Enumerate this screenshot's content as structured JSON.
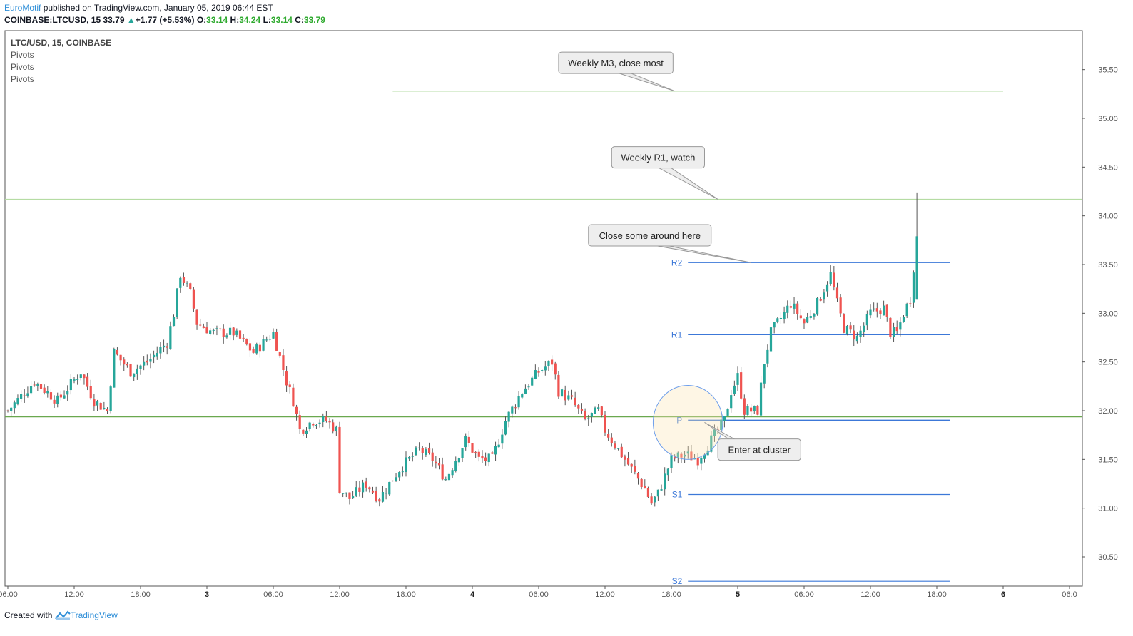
{
  "header": {
    "brand": "EuroMotif",
    "published": " published on TradingView.com, January 05, 2019 06:44 EST",
    "symbol": "COINBASE:LTCUSD, 15",
    "last": "33.79",
    "change": "+1.77 (+5.53%)",
    "o_label": "O:",
    "o": "33.14",
    "h_label": "H:",
    "h": "34.24",
    "l_label": "L:",
    "l": "33.14",
    "c_label": "C:",
    "c": "33.79"
  },
  "legend": {
    "symbol_line": "LTC/USD, 15, COINBASE",
    "indicators": [
      "Pivots",
      "Pivots",
      "Pivots"
    ]
  },
  "footer": {
    "created": "Created with ",
    "brand": "TradingView"
  },
  "colors": {
    "up": "#26a69a",
    "down": "#ef5350",
    "pivot": "#3c78d8",
    "weekly": "#6aa84f",
    "accent": "#2f8fd8"
  },
  "chart_data": {
    "type": "candlestick",
    "ylim": [
      30.2,
      35.9
    ],
    "y_ticks": [
      "30.50",
      "31.00",
      "31.50",
      "32.00",
      "32.50",
      "33.00",
      "33.50",
      "34.00",
      "34.50",
      "35.00",
      "35.50"
    ],
    "x_ticks": [
      {
        "label": "06:00",
        "bold": false
      },
      {
        "label": "12:00",
        "bold": false
      },
      {
        "label": "18:00",
        "bold": false
      },
      {
        "label": "3",
        "bold": true
      },
      {
        "label": "06:00",
        "bold": false
      },
      {
        "label": "12:00",
        "bold": false
      },
      {
        "label": "18:00",
        "bold": false
      },
      {
        "label": "4",
        "bold": true
      },
      {
        "label": "06:00",
        "bold": false
      },
      {
        "label": "12:00",
        "bold": false
      },
      {
        "label": "18:00",
        "bold": false
      },
      {
        "label": "5",
        "bold": true
      },
      {
        "label": "06:00",
        "bold": false
      },
      {
        "label": "12:00",
        "bold": false
      },
      {
        "label": "18:00",
        "bold": false
      },
      {
        "label": "6",
        "bold": true
      },
      {
        "label": "06:0",
        "bold": false
      }
    ],
    "close_path": [
      [
        0,
        32.0
      ],
      [
        8,
        32.3
      ],
      [
        15,
        32.1
      ],
      [
        22,
        32.4
      ],
      [
        26,
        32.1
      ],
      [
        30,
        32.0
      ],
      [
        32,
        32.6
      ],
      [
        37,
        32.4
      ],
      [
        42,
        32.5
      ],
      [
        48,
        32.7
      ],
      [
        50,
        33.0
      ],
      [
        52,
        33.4
      ],
      [
        55,
        33.2
      ],
      [
        57,
        32.9
      ],
      [
        62,
        32.8
      ],
      [
        68,
        32.8
      ],
      [
        74,
        32.6
      ],
      [
        80,
        32.8
      ],
      [
        84,
        32.3
      ],
      [
        86,
        32.1
      ],
      [
        88,
        31.8
      ],
      [
        92,
        31.9
      ],
      [
        96,
        31.9
      ],
      [
        99,
        31.8
      ],
      [
        100,
        31.2
      ],
      [
        103,
        31.1
      ],
      [
        108,
        31.25
      ],
      [
        112,
        31.1
      ],
      [
        118,
        31.4
      ],
      [
        124,
        31.6
      ],
      [
        128,
        31.5
      ],
      [
        132,
        31.3
      ],
      [
        138,
        31.7
      ],
      [
        142,
        31.5
      ],
      [
        146,
        31.5
      ],
      [
        150,
        31.9
      ],
      [
        155,
        32.2
      ],
      [
        160,
        32.4
      ],
      [
        164,
        32.5
      ],
      [
        166,
        32.2
      ],
      [
        170,
        32.1
      ],
      [
        174,
        31.9
      ],
      [
        178,
        32.0
      ],
      [
        180,
        31.8
      ],
      [
        186,
        31.5
      ],
      [
        190,
        31.3
      ],
      [
        192,
        31.2
      ],
      [
        194,
        31.05
      ],
      [
        196,
        31.15
      ],
      [
        200,
        31.5
      ],
      [
        204,
        31.55
      ],
      [
        208,
        31.5
      ],
      [
        212,
        31.7
      ],
      [
        216,
        31.9
      ],
      [
        218,
        32.2
      ],
      [
        220,
        32.35
      ],
      [
        222,
        32.0
      ],
      [
        224,
        32.0
      ],
      [
        226,
        32.0
      ],
      [
        228,
        32.5
      ],
      [
        230,
        32.8
      ],
      [
        236,
        33.1
      ],
      [
        240,
        32.9
      ],
      [
        244,
        33.1
      ],
      [
        248,
        33.4
      ],
      [
        250,
        33.1
      ],
      [
        252,
        32.85
      ],
      [
        256,
        32.75
      ],
      [
        260,
        33.0
      ],
      [
        264,
        33.05
      ],
      [
        266,
        32.8
      ],
      [
        268,
        32.8
      ],
      [
        270,
        33.0
      ],
      [
        272,
        33.15
      ],
      [
        274,
        33.8
      ]
    ],
    "horizontal_levels": [
      {
        "name": "weekly-m3",
        "y": 35.28,
        "x0": 116,
        "x1": 300,
        "color": "#9fd08a",
        "width": 1.2
      },
      {
        "name": "weekly-r1",
        "y": 34.17,
        "x0": 0,
        "x1": 324,
        "color": "#b5dca3",
        "width": 1.2
      },
      {
        "name": "weekly-pivot",
        "y": 31.94,
        "x0": 0,
        "x1": 324,
        "color": "#6aa84f",
        "width": 2
      },
      {
        "name": "pivot-r2",
        "y": 33.52,
        "x0": 205,
        "x1": 284,
        "color": "#3c78d8",
        "width": 1.2,
        "label": "R2"
      },
      {
        "name": "pivot-r1",
        "y": 32.78,
        "x0": 205,
        "x1": 284,
        "color": "#3c78d8",
        "width": 1.2,
        "label": "R1"
      },
      {
        "name": "pivot-p",
        "y": 31.9,
        "x0": 205,
        "x1": 284,
        "color": "#3c78d8",
        "width": 2,
        "label": "P"
      },
      {
        "name": "pivot-s1",
        "y": 31.14,
        "x0": 205,
        "x1": 284,
        "color": "#3c78d8",
        "width": 1.2,
        "label": "S1"
      },
      {
        "name": "pivot-s2",
        "y": 30.25,
        "x0": 205,
        "x1": 284,
        "color": "#3c78d8",
        "width": 1.2,
        "label": "S2"
      }
    ],
    "annotations": [
      {
        "name": "callout-partial",
        "text": "",
        "bx": 192,
        "by": 36.02,
        "bw": 30,
        "tx": 0,
        "ty": 0,
        "cut": true
      },
      {
        "name": "callout-weekly-m3",
        "text": "Weekly M3, close most",
        "bx": 166,
        "by": 35.57,
        "bw": 34.5,
        "tx": 201,
        "ty": 35.28
      },
      {
        "name": "callout-weekly-r1",
        "text": "Weekly R1, watch",
        "bx": 182,
        "by": 34.6,
        "bw": 28,
        "tx": 214,
        "ty": 34.17
      },
      {
        "name": "callout-close-some",
        "text": "Close some around here",
        "bx": 175,
        "by": 33.8,
        "bw": 37,
        "tx": 224,
        "ty": 33.52
      },
      {
        "name": "callout-enter-cluster",
        "text": "Enter at cluster",
        "bx": 214,
        "by": 31.6,
        "bw": 25,
        "tx": 210,
        "ty": 31.88
      }
    ],
    "cluster_ellipse": {
      "cx": 205,
      "cy": 31.88,
      "rx": 10.5,
      "ry": 0.38
    }
  }
}
